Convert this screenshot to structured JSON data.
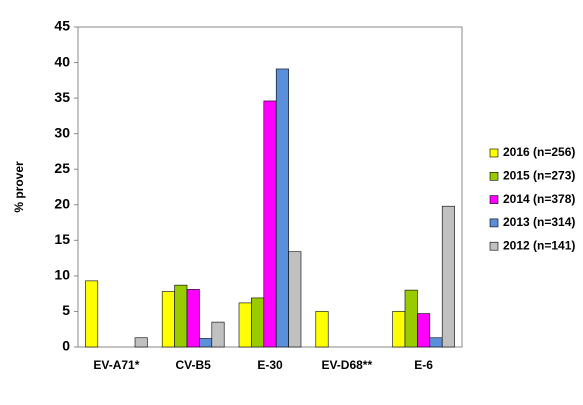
{
  "chart_data": {
    "type": "bar",
    "y_label": "% prover",
    "categories": [
      "EV-A71*",
      "CV-B5",
      "E-30",
      "EV-D68**",
      "E-6"
    ],
    "series": [
      {
        "name": "2016 (n=256)",
        "color": "#ffff00",
        "values": [
          9.3,
          7.8,
          6.2,
          5.0,
          5.0
        ]
      },
      {
        "name": "2015 (n=273)",
        "color": "#99cc00",
        "values": [
          0,
          8.7,
          6.9,
          0,
          8.0
        ]
      },
      {
        "name": "2014 (n=378)",
        "color": "#ff00ff",
        "values": [
          0,
          8.1,
          34.6,
          0,
          4.7
        ]
      },
      {
        "name": "2013 (n=314)",
        "color": "#5b8fd9",
        "values": [
          0,
          1.2,
          39.1,
          0,
          1.3
        ]
      },
      {
        "name": "2012 (n=141)",
        "color": "#c0c0c0",
        "values": [
          1.3,
          3.5,
          13.4,
          0,
          19.8
        ]
      }
    ],
    "ylim": [
      0,
      45
    ],
    "yticks": [
      0,
      5,
      10,
      15,
      20,
      25,
      30,
      35,
      40,
      45
    ],
    "grid": false,
    "legend": "right"
  }
}
